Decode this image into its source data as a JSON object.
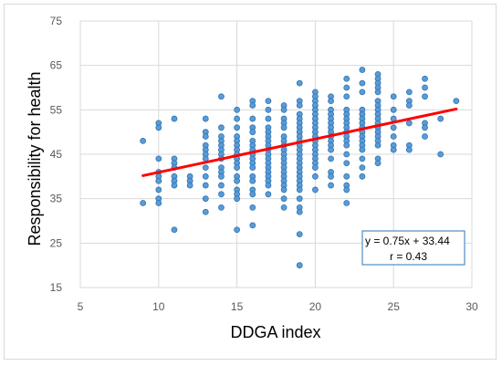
{
  "chart_data": {
    "type": "scatter",
    "title": "",
    "xlabel": "DDGA index",
    "ylabel": "Responsibility for health",
    "xlim": [
      5,
      30
    ],
    "ylim": [
      15,
      75
    ],
    "xticks": [
      "5",
      "10",
      "15",
      "20",
      "25",
      "30"
    ],
    "yticks": [
      "15",
      "25",
      "35",
      "45",
      "55",
      "65",
      "75"
    ],
    "grid": true,
    "legend": "none",
    "colors": {
      "points": "#5b9bd5",
      "point_edge": "#2e75b6",
      "trendline": "#ff0000",
      "grid": "#d9d9d9"
    },
    "points": [
      [
        9,
        48
      ],
      [
        9,
        34
      ],
      [
        10,
        52
      ],
      [
        10,
        51
      ],
      [
        10,
        44
      ],
      [
        10,
        41
      ],
      [
        10,
        40
      ],
      [
        10,
        39
      ],
      [
        10,
        37
      ],
      [
        10,
        35
      ],
      [
        10,
        34
      ],
      [
        11,
        53
      ],
      [
        11,
        44
      ],
      [
        11,
        43
      ],
      [
        11,
        42
      ],
      [
        11,
        40
      ],
      [
        11,
        39
      ],
      [
        11,
        38
      ],
      [
        11,
        28
      ],
      [
        12,
        40
      ],
      [
        12,
        39
      ],
      [
        12,
        38
      ],
      [
        13,
        53
      ],
      [
        13,
        50
      ],
      [
        13,
        49
      ],
      [
        13,
        47
      ],
      [
        13,
        46
      ],
      [
        13,
        45
      ],
      [
        13,
        44
      ],
      [
        13,
        42
      ],
      [
        13,
        40
      ],
      [
        13,
        38
      ],
      [
        13,
        35
      ],
      [
        13,
        32
      ],
      [
        14,
        58
      ],
      [
        14,
        51
      ],
      [
        14,
        49
      ],
      [
        14,
        48
      ],
      [
        14,
        47
      ],
      [
        14,
        46
      ],
      [
        14,
        45
      ],
      [
        14,
        44
      ],
      [
        14,
        42
      ],
      [
        14,
        41
      ],
      [
        14,
        40
      ],
      [
        14,
        38
      ],
      [
        14,
        36
      ],
      [
        14,
        33
      ],
      [
        15,
        55
      ],
      [
        15,
        53
      ],
      [
        15,
        51
      ],
      [
        15,
        49
      ],
      [
        15,
        48
      ],
      [
        15,
        47
      ],
      [
        15,
        46
      ],
      [
        15,
        45
      ],
      [
        15,
        44
      ],
      [
        15,
        43
      ],
      [
        15,
        42
      ],
      [
        15,
        40
      ],
      [
        15,
        39
      ],
      [
        15,
        37
      ],
      [
        15,
        36
      ],
      [
        15,
        35
      ],
      [
        15,
        28
      ],
      [
        16,
        57
      ],
      [
        16,
        56
      ],
      [
        16,
        53
      ],
      [
        16,
        51
      ],
      [
        16,
        50
      ],
      [
        16,
        48
      ],
      [
        16,
        47
      ],
      [
        16,
        46
      ],
      [
        16,
        45
      ],
      [
        16,
        44
      ],
      [
        16,
        43
      ],
      [
        16,
        42
      ],
      [
        16,
        40
      ],
      [
        16,
        39
      ],
      [
        16,
        37
      ],
      [
        16,
        36
      ],
      [
        16,
        33
      ],
      [
        16,
        29
      ],
      [
        17,
        57
      ],
      [
        17,
        55
      ],
      [
        17,
        53
      ],
      [
        17,
        51
      ],
      [
        17,
        50
      ],
      [
        17,
        49
      ],
      [
        17,
        48
      ],
      [
        17,
        47
      ],
      [
        17,
        46
      ],
      [
        17,
        45
      ],
      [
        17,
        44
      ],
      [
        17,
        43
      ],
      [
        17,
        42
      ],
      [
        17,
        41
      ],
      [
        17,
        40
      ],
      [
        17,
        39
      ],
      [
        17,
        38
      ],
      [
        17,
        36
      ],
      [
        18,
        56
      ],
      [
        18,
        55
      ],
      [
        18,
        53
      ],
      [
        18,
        52
      ],
      [
        18,
        51
      ],
      [
        18,
        49
      ],
      [
        18,
        48
      ],
      [
        18,
        47
      ],
      [
        18,
        46
      ],
      [
        18,
        45
      ],
      [
        18,
        44
      ],
      [
        18,
        43
      ],
      [
        18,
        42
      ],
      [
        18,
        41
      ],
      [
        18,
        40
      ],
      [
        18,
        39
      ],
      [
        18,
        38
      ],
      [
        18,
        37
      ],
      [
        18,
        35
      ],
      [
        18,
        33
      ],
      [
        19,
        61
      ],
      [
        19,
        57
      ],
      [
        19,
        56
      ],
      [
        19,
        54
      ],
      [
        19,
        53
      ],
      [
        19,
        52
      ],
      [
        19,
        51
      ],
      [
        19,
        50
      ],
      [
        19,
        49
      ],
      [
        19,
        48
      ],
      [
        19,
        47
      ],
      [
        19,
        46
      ],
      [
        19,
        45
      ],
      [
        19,
        44
      ],
      [
        19,
        43
      ],
      [
        19,
        42
      ],
      [
        19,
        41
      ],
      [
        19,
        40
      ],
      [
        19,
        39
      ],
      [
        19,
        38
      ],
      [
        19,
        37
      ],
      [
        19,
        35
      ],
      [
        19,
        33
      ],
      [
        19,
        32
      ],
      [
        19,
        27
      ],
      [
        19,
        20
      ],
      [
        20,
        59
      ],
      [
        20,
        58
      ],
      [
        20,
        57
      ],
      [
        20,
        56
      ],
      [
        20,
        55
      ],
      [
        20,
        54
      ],
      [
        20,
        53
      ],
      [
        20,
        52
      ],
      [
        20,
        51
      ],
      [
        20,
        50
      ],
      [
        20,
        49
      ],
      [
        20,
        48
      ],
      [
        20,
        47
      ],
      [
        20,
        46
      ],
      [
        20,
        45
      ],
      [
        20,
        44
      ],
      [
        20,
        43
      ],
      [
        20,
        42
      ],
      [
        20,
        40
      ],
      [
        20,
        37
      ],
      [
        21,
        58
      ],
      [
        21,
        57
      ],
      [
        21,
        55
      ],
      [
        21,
        54
      ],
      [
        21,
        53
      ],
      [
        21,
        52
      ],
      [
        21,
        51
      ],
      [
        21,
        50
      ],
      [
        21,
        49
      ],
      [
        21,
        48
      ],
      [
        21,
        47
      ],
      [
        21,
        46
      ],
      [
        21,
        44
      ],
      [
        21,
        41
      ],
      [
        21,
        40
      ],
      [
        21,
        38
      ],
      [
        22,
        62
      ],
      [
        22,
        60
      ],
      [
        22,
        58
      ],
      [
        22,
        55
      ],
      [
        22,
        54
      ],
      [
        22,
        53
      ],
      [
        22,
        52
      ],
      [
        22,
        51
      ],
      [
        22,
        50
      ],
      [
        22,
        49
      ],
      [
        22,
        48
      ],
      [
        22,
        47
      ],
      [
        22,
        45
      ],
      [
        22,
        43
      ],
      [
        22,
        40
      ],
      [
        22,
        38
      ],
      [
        22,
        37
      ],
      [
        22,
        34
      ],
      [
        23,
        64
      ],
      [
        23,
        61
      ],
      [
        23,
        59
      ],
      [
        23,
        55
      ],
      [
        23,
        54
      ],
      [
        23,
        53
      ],
      [
        23,
        52
      ],
      [
        23,
        51
      ],
      [
        23,
        50
      ],
      [
        23,
        49
      ],
      [
        23,
        48
      ],
      [
        23,
        47
      ],
      [
        23,
        46
      ],
      [
        23,
        44
      ],
      [
        23,
        42
      ],
      [
        23,
        40
      ],
      [
        24,
        63
      ],
      [
        24,
        62
      ],
      [
        24,
        61
      ],
      [
        24,
        60
      ],
      [
        24,
        59
      ],
      [
        24,
        57
      ],
      [
        24,
        56
      ],
      [
        24,
        55
      ],
      [
        24,
        54
      ],
      [
        24,
        53
      ],
      [
        24,
        52
      ],
      [
        24,
        51
      ],
      [
        24,
        50
      ],
      [
        24,
        49
      ],
      [
        24,
        48
      ],
      [
        24,
        47
      ],
      [
        24,
        44
      ],
      [
        24,
        43
      ],
      [
        25,
        58
      ],
      [
        25,
        55
      ],
      [
        25,
        53
      ],
      [
        25,
        51
      ],
      [
        25,
        49
      ],
      [
        25,
        47
      ],
      [
        25,
        46
      ],
      [
        26,
        59
      ],
      [
        26,
        57
      ],
      [
        26,
        56
      ],
      [
        26,
        52
      ],
      [
        26,
        47
      ],
      [
        26,
        46
      ],
      [
        27,
        62
      ],
      [
        27,
        60
      ],
      [
        27,
        58
      ],
      [
        27,
        52
      ],
      [
        27,
        51
      ],
      [
        27,
        49
      ],
      [
        28,
        53
      ],
      [
        28,
        45
      ],
      [
        29,
        57
      ]
    ],
    "trendline": {
      "slope": 0.75,
      "intercept": 33.44,
      "x_range": [
        9,
        29
      ]
    },
    "annotations": [
      "y = 0.75x + 33.44",
      "r = 0.43"
    ]
  }
}
